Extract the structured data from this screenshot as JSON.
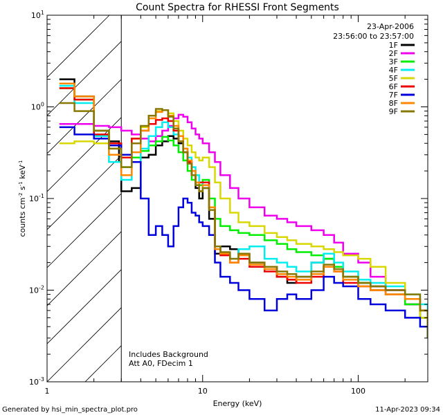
{
  "chart_data": {
    "type": "line",
    "title": "Count Spectra for RHESSI Front Segments",
    "xlabel": "Energy (keV)",
    "ylabel": "counts cm",
    "ylabel_sup1": "-2",
    "ylabel_mid": " s",
    "ylabel_sup2": "-1",
    "ylabel_end": " keV",
    "ylabel_sup3": "-1",
    "xscale": "log",
    "yscale": "log",
    "xlim": [
      1,
      280
    ],
    "ylim": [
      0.001,
      10
    ],
    "x_ticks": [
      {
        "value": 1,
        "label": "1"
      },
      {
        "value": 10,
        "label": "10"
      },
      {
        "value": 100,
        "label": "100"
      }
    ],
    "y_ticks": [
      {
        "value": 10,
        "base": "10",
        "exp": "1"
      },
      {
        "value": 1,
        "base": "10",
        "exp": "0"
      },
      {
        "value": 0.1,
        "base": "10",
        "exp": "-1"
      },
      {
        "value": 0.01,
        "base": "10",
        "exp": "-2"
      },
      {
        "value": 0.001,
        "base": "10",
        "exp": "-3"
      }
    ],
    "date": "23-Apr-2006",
    "time_range": "23:56:00 to 23:57:00",
    "annotations": [
      "Includes Background",
      "Att A0, FDecim 1"
    ],
    "hatched_region_keV": [
      1,
      3
    ],
    "footer_left": "Generated by hsi_min_spectra_plot.pro",
    "footer_right": "11-Apr-2023 09:34",
    "series": [
      {
        "name": "1F",
        "color": "#000000",
        "x": [
          1.2,
          1.5,
          2.0,
          2.5,
          2.9,
          3.0,
          3.5,
          4.0,
          4.5,
          5.0,
          5.5,
          6.0,
          6.5,
          7.0,
          7.5,
          8.0,
          8.5,
          9.0,
          9.5,
          10,
          11,
          12,
          13,
          15,
          17,
          20,
          25,
          30,
          35,
          40,
          50,
          60,
          70,
          80,
          100,
          120,
          150,
          200,
          250,
          280
        ],
        "y": [
          2.0,
          1.3,
          0.55,
          0.42,
          0.25,
          0.12,
          0.13,
          0.28,
          0.3,
          0.38,
          0.42,
          0.48,
          0.45,
          0.4,
          0.32,
          0.25,
          0.18,
          0.13,
          0.1,
          0.13,
          0.06,
          0.025,
          0.03,
          0.028,
          0.025,
          0.02,
          0.018,
          0.014,
          0.012,
          0.014,
          0.02,
          0.022,
          0.018,
          0.014,
          0.012,
          0.011,
          0.01,
          0.007,
          0.005,
          0.003
        ]
      },
      {
        "name": "2F",
        "color": "#ee00ee",
        "x": [
          1.2,
          1.5,
          2.0,
          2.5,
          3.0,
          3.5,
          4.0,
          4.5,
          5.0,
          5.5,
          6.0,
          6.5,
          7.0,
          7.5,
          8.0,
          8.5,
          9.0,
          9.5,
          10,
          11,
          12,
          13,
          15,
          17,
          20,
          25,
          30,
          35,
          40,
          50,
          60,
          70,
          80,
          100,
          120,
          150,
          200,
          250,
          280
        ],
        "y": [
          0.65,
          0.65,
          0.62,
          0.6,
          0.55,
          0.5,
          0.45,
          0.42,
          0.48,
          0.55,
          0.62,
          0.75,
          0.82,
          0.78,
          0.68,
          0.58,
          0.5,
          0.45,
          0.4,
          0.32,
          0.25,
          0.18,
          0.13,
          0.1,
          0.08,
          0.065,
          0.06,
          0.055,
          0.05,
          0.045,
          0.04,
          0.033,
          0.025,
          0.02,
          0.014,
          0.01,
          0.007,
          0.005,
          0.004
        ]
      },
      {
        "name": "3F",
        "color": "#00ee00",
        "x": [
          1.2,
          1.5,
          2.0,
          2.5,
          3.0,
          3.5,
          4.0,
          4.5,
          5.0,
          5.5,
          6.0,
          6.5,
          7.0,
          7.5,
          8.0,
          8.5,
          9.0,
          9.5,
          10,
          11,
          12,
          13,
          15,
          17,
          20,
          25,
          30,
          35,
          40,
          50,
          60,
          70,
          80,
          100,
          120,
          150,
          200,
          250,
          280
        ],
        "y": [
          1.6,
          1.2,
          0.55,
          0.4,
          0.22,
          0.28,
          0.33,
          0.38,
          0.42,
          0.47,
          0.43,
          0.38,
          0.32,
          0.26,
          0.2,
          0.16,
          0.15,
          0.14,
          0.16,
          0.1,
          0.06,
          0.05,
          0.045,
          0.042,
          0.04,
          0.035,
          0.032,
          0.028,
          0.026,
          0.024,
          0.022,
          0.018,
          0.014,
          0.012,
          0.01,
          0.009,
          0.007,
          0.005,
          0.003
        ]
      },
      {
        "name": "4F",
        "color": "#00eeee",
        "x": [
          1.2,
          1.5,
          2.0,
          2.5,
          3.0,
          3.5,
          4.0,
          4.5,
          5.0,
          5.5,
          6.0,
          6.5,
          7.0,
          7.5,
          8.0,
          8.5,
          9.0,
          9.5,
          10,
          11,
          12,
          13,
          15,
          17,
          20,
          25,
          30,
          35,
          40,
          50,
          60,
          70,
          80,
          100,
          120,
          150,
          200,
          250,
          280
        ],
        "y": [
          1.7,
          1.1,
          0.48,
          0.25,
          0.16,
          0.25,
          0.35,
          0.48,
          0.6,
          0.68,
          0.6,
          0.5,
          0.42,
          0.35,
          0.28,
          0.22,
          0.18,
          0.15,
          0.13,
          0.08,
          0.03,
          0.025,
          0.022,
          0.028,
          0.03,
          0.022,
          0.02,
          0.018,
          0.016,
          0.02,
          0.025,
          0.02,
          0.016,
          0.013,
          0.012,
          0.011,
          0.009,
          0.007,
          0.004
        ]
      },
      {
        "name": "5F",
        "color": "#d8d800",
        "x": [
          1.2,
          1.5,
          2.0,
          2.5,
          3.0,
          3.5,
          4.0,
          4.5,
          5.0,
          5.5,
          6.0,
          6.5,
          7.0,
          7.5,
          8.0,
          8.5,
          9.0,
          9.5,
          10,
          11,
          12,
          13,
          15,
          17,
          20,
          25,
          30,
          35,
          40,
          50,
          60,
          70,
          80,
          100,
          120,
          150,
          200,
          250,
          280
        ],
        "y": [
          0.4,
          0.42,
          0.4,
          0.35,
          0.3,
          0.45,
          0.6,
          0.75,
          0.9,
          0.92,
          0.85,
          0.7,
          0.55,
          0.45,
          0.38,
          0.32,
          0.28,
          0.26,
          0.28,
          0.22,
          0.15,
          0.1,
          0.07,
          0.055,
          0.05,
          0.042,
          0.038,
          0.035,
          0.032,
          0.03,
          0.028,
          0.026,
          0.024,
          0.022,
          0.018,
          0.012,
          0.008,
          0.005,
          0.004
        ]
      },
      {
        "name": "6F",
        "color": "#ee0000",
        "x": [
          1.2,
          1.5,
          2.0,
          2.5,
          3.0,
          3.5,
          4.0,
          4.5,
          5.0,
          5.5,
          6.0,
          6.5,
          7.0,
          7.5,
          8.0,
          8.5,
          9.0,
          9.5,
          10,
          11,
          12,
          13,
          15,
          17,
          20,
          25,
          30,
          35,
          40,
          50,
          60,
          70,
          80,
          100,
          120,
          150,
          200,
          250,
          280
        ],
        "y": [
          1.6,
          1.2,
          0.5,
          0.4,
          0.28,
          0.45,
          0.55,
          0.65,
          0.72,
          0.75,
          0.7,
          0.55,
          0.42,
          0.32,
          0.25,
          0.18,
          0.15,
          0.15,
          0.15,
          0.08,
          0.028,
          0.024,
          0.02,
          0.022,
          0.018,
          0.016,
          0.014,
          0.013,
          0.012,
          0.014,
          0.018,
          0.016,
          0.012,
          0.011,
          0.01,
          0.009,
          0.008,
          0.006,
          0.004
        ]
      },
      {
        "name": "7F",
        "color": "#0000dd",
        "x": [
          1.2,
          1.5,
          2.0,
          2.5,
          3.0,
          3.5,
          4.0,
          4.5,
          5.0,
          5.5,
          6.0,
          6.5,
          7.0,
          7.5,
          8.0,
          8.5,
          9.0,
          9.5,
          10,
          11,
          12,
          13,
          15,
          17,
          20,
          25,
          30,
          35,
          40,
          50,
          60,
          70,
          80,
          100,
          120,
          150,
          200,
          250,
          280
        ],
        "y": [
          0.6,
          0.5,
          0.45,
          0.38,
          0.3,
          0.25,
          0.1,
          0.04,
          0.05,
          0.04,
          0.03,
          0.05,
          0.08,
          0.1,
          0.09,
          0.07,
          0.065,
          0.055,
          0.05,
          0.04,
          0.02,
          0.014,
          0.012,
          0.01,
          0.008,
          0.006,
          0.008,
          0.009,
          0.008,
          0.01,
          0.014,
          0.012,
          0.011,
          0.008,
          0.007,
          0.006,
          0.005,
          0.004,
          0.003
        ]
      },
      {
        "name": "8F",
        "color": "#ff8800",
        "x": [
          1.2,
          1.5,
          2.0,
          2.5,
          3.0,
          3.5,
          4.0,
          4.5,
          5.0,
          5.5,
          6.0,
          6.5,
          7.0,
          7.5,
          8.0,
          8.5,
          9.0,
          9.5,
          10,
          11,
          12,
          13,
          15,
          17,
          20,
          25,
          30,
          35,
          40,
          50,
          60,
          70,
          80,
          100,
          120,
          150,
          200,
          250,
          280
        ],
        "y": [
          1.8,
          1.3,
          0.55,
          0.3,
          0.18,
          0.32,
          0.55,
          0.75,
          0.88,
          0.92,
          0.8,
          0.62,
          0.48,
          0.35,
          0.26,
          0.2,
          0.15,
          0.12,
          0.14,
          0.08,
          0.028,
          0.025,
          0.02,
          0.024,
          0.019,
          0.017,
          0.015,
          0.014,
          0.013,
          0.015,
          0.018,
          0.016,
          0.013,
          0.011,
          0.01,
          0.009,
          0.008,
          0.006,
          0.004
        ]
      },
      {
        "name": "9F",
        "color": "#887700",
        "x": [
          1.2,
          1.5,
          2.0,
          2.5,
          3.0,
          3.5,
          4.0,
          4.5,
          5.0,
          5.5,
          6.0,
          6.5,
          7.0,
          7.5,
          8.0,
          8.5,
          9.0,
          9.5,
          10,
          11,
          12,
          13,
          15,
          17,
          20,
          25,
          30,
          35,
          40,
          50,
          60,
          70,
          80,
          100,
          120,
          150,
          200,
          250,
          280
        ],
        "y": [
          1.1,
          0.9,
          0.55,
          0.35,
          0.22,
          0.4,
          0.62,
          0.8,
          0.95,
          0.92,
          0.78,
          0.58,
          0.42,
          0.32,
          0.24,
          0.18,
          0.14,
          0.12,
          0.13,
          0.075,
          0.03,
          0.026,
          0.022,
          0.025,
          0.02,
          0.018,
          0.016,
          0.015,
          0.014,
          0.016,
          0.019,
          0.017,
          0.014,
          0.012,
          0.011,
          0.01,
          0.009,
          0.006,
          0.003
        ]
      }
    ]
  }
}
